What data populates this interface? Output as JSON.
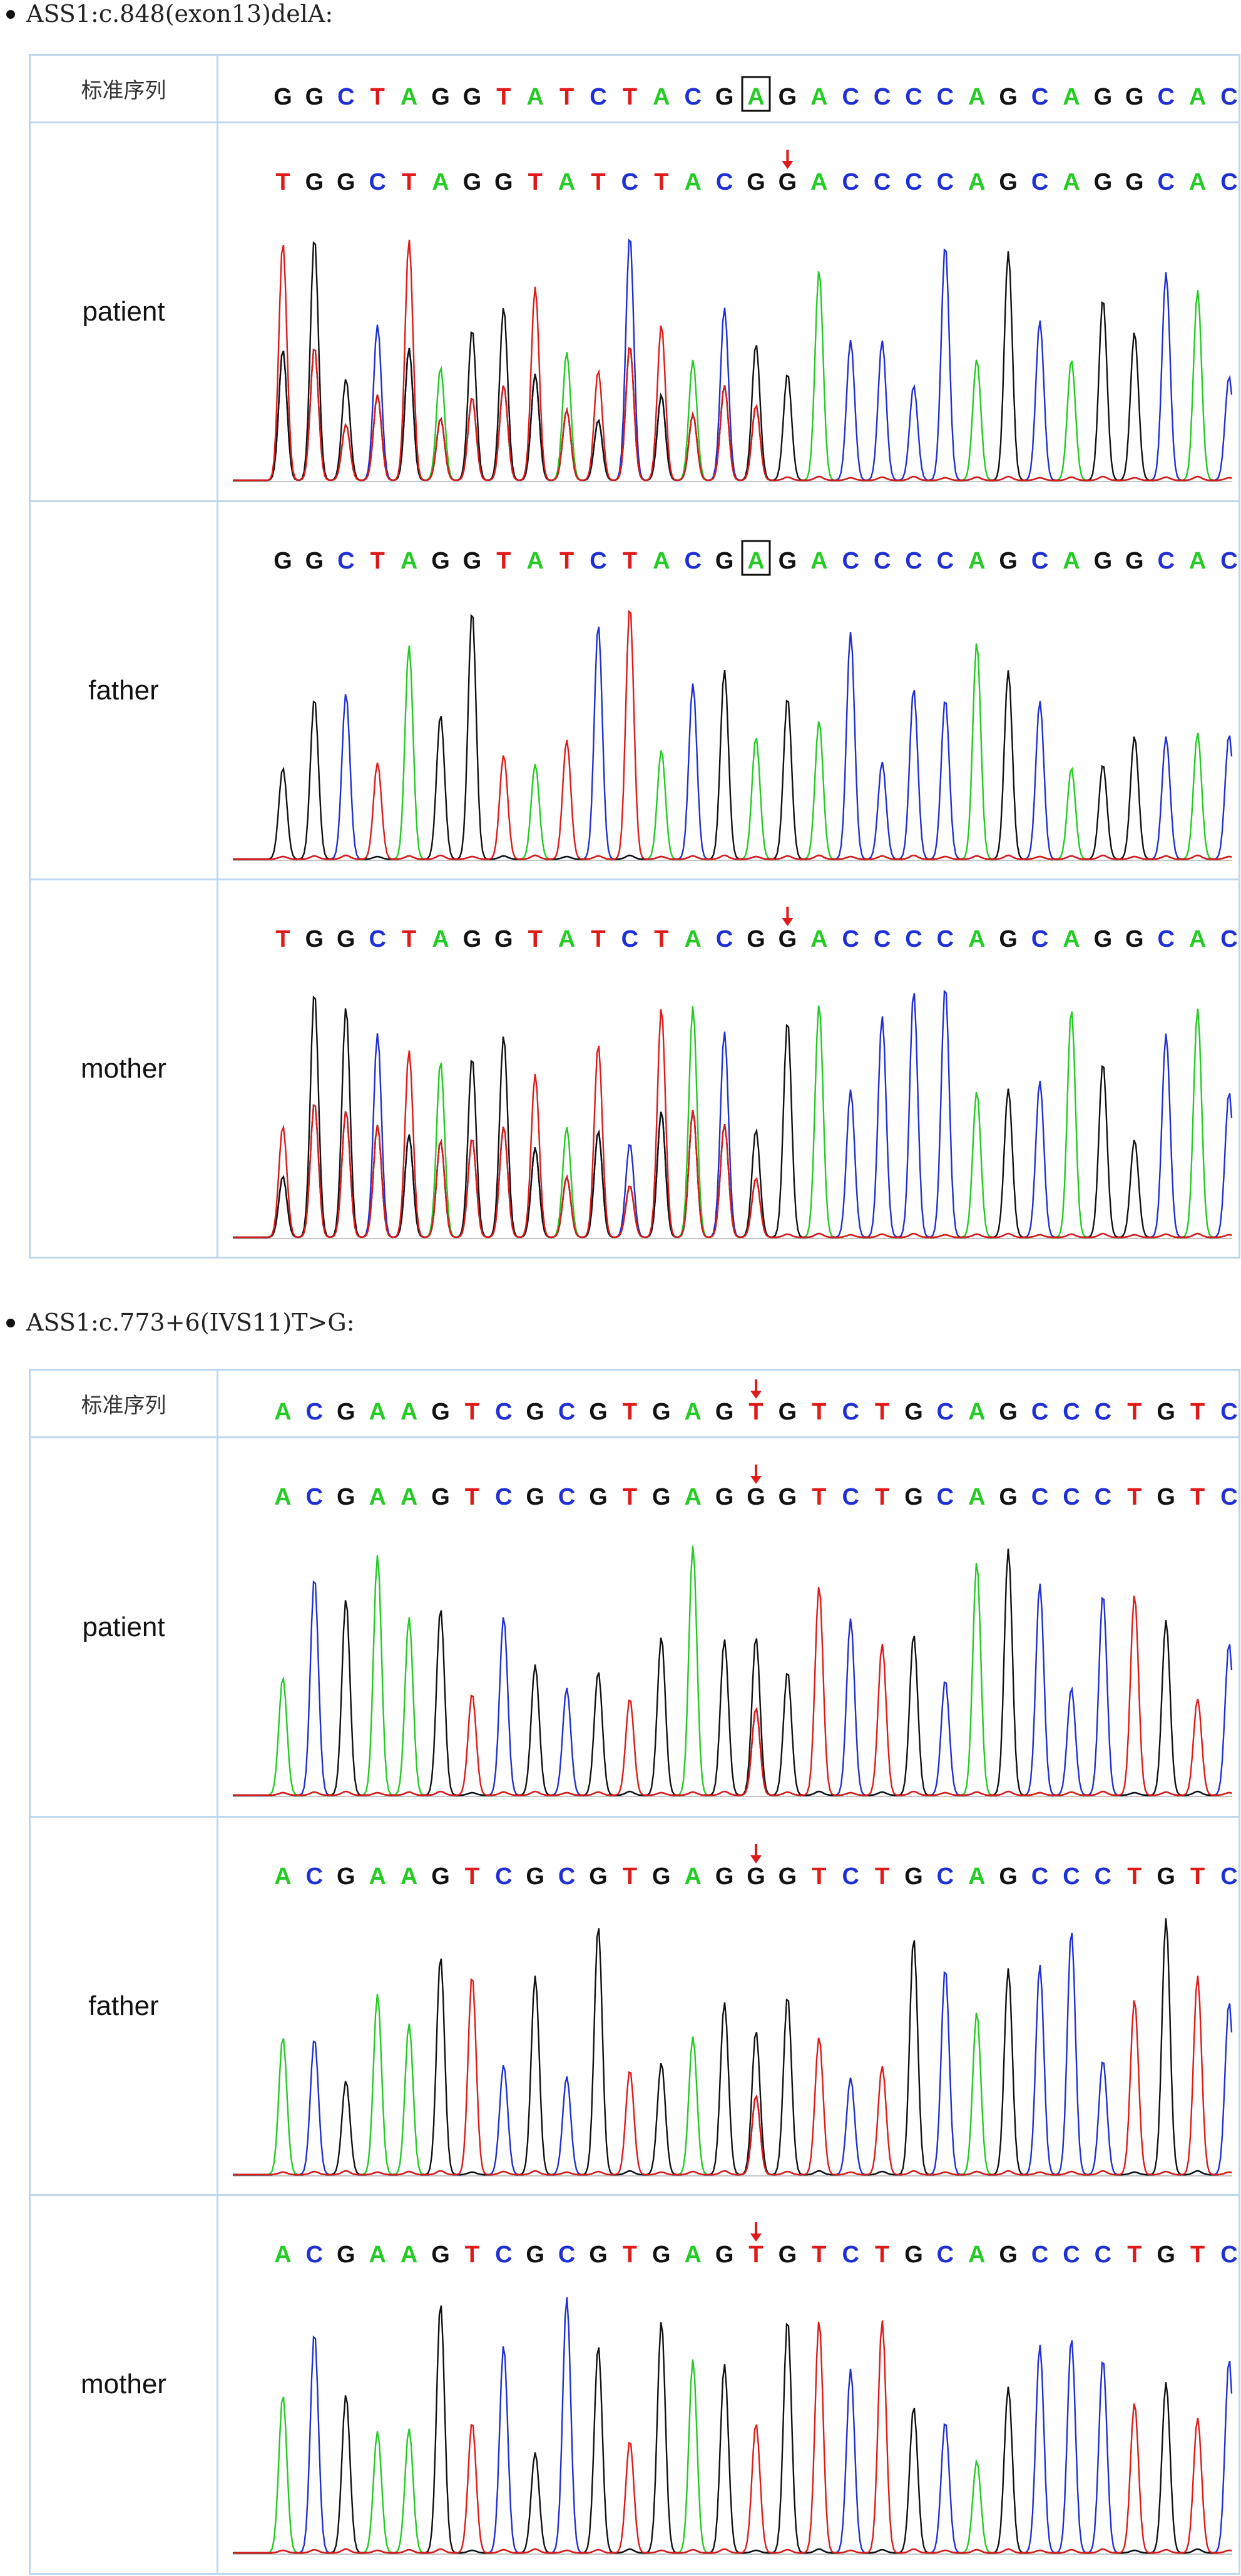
{
  "sections": [
    {
      "title": "ASS1:c.848(exon13)delA:",
      "ref_label": "标准序列",
      "ref_sequence": "GGCTAGGTATCTACGAGACCCCAGCAGGCAC",
      "ref_boxed_index": 15,
      "rows": [
        {
          "label": "patient",
          "sequence": "TGGCTAGGTATCTACGGACCCCAGCAGGCAC",
          "arrow_index": 16,
          "boxed_index": null
        },
        {
          "label": "father",
          "sequence": "GGCTAGGTATCTACGAGACCCCAGCAGGCAC",
          "arrow_index": null,
          "boxed_index": 15
        },
        {
          "label": "mother",
          "sequence": "TGGCTAGGTATCTACGGACCCCAGCAGGCAC",
          "arrow_index": 16,
          "boxed_index": null
        }
      ]
    },
    {
      "title": "ASS1:c.773+6(IVS11)T>G:",
      "ref_label": "标准序列",
      "ref_sequence": "ACGAAGTCGCGTGAGTGTCTGCAGCCCTGTC",
      "ref_arrow_index": 15,
      "rows": [
        {
          "label": "patient",
          "sequence": "ACGAAGTCGCGTGAGGGTCTGCAGCCCTGTC",
          "arrow_index": 15,
          "boxed_index": null
        },
        {
          "label": "father",
          "sequence": "ACGAAGTCGCGTGAGGGTCTGCAGCCCTGTC",
          "arrow_index": 15,
          "boxed_index": null
        },
        {
          "label": "mother",
          "sequence": "ACGAAGTCGCGTGAGTGTCTGCAGCCCTGTC",
          "arrow_index": 15,
          "boxed_index": null
        }
      ]
    }
  ],
  "base_colors": {
    "A": "#22cc22",
    "C": "#1f2fd6",
    "G": "#111111",
    "T": "#e01919"
  },
  "arrow_color": "#e01919",
  "box_color": "#111111"
}
